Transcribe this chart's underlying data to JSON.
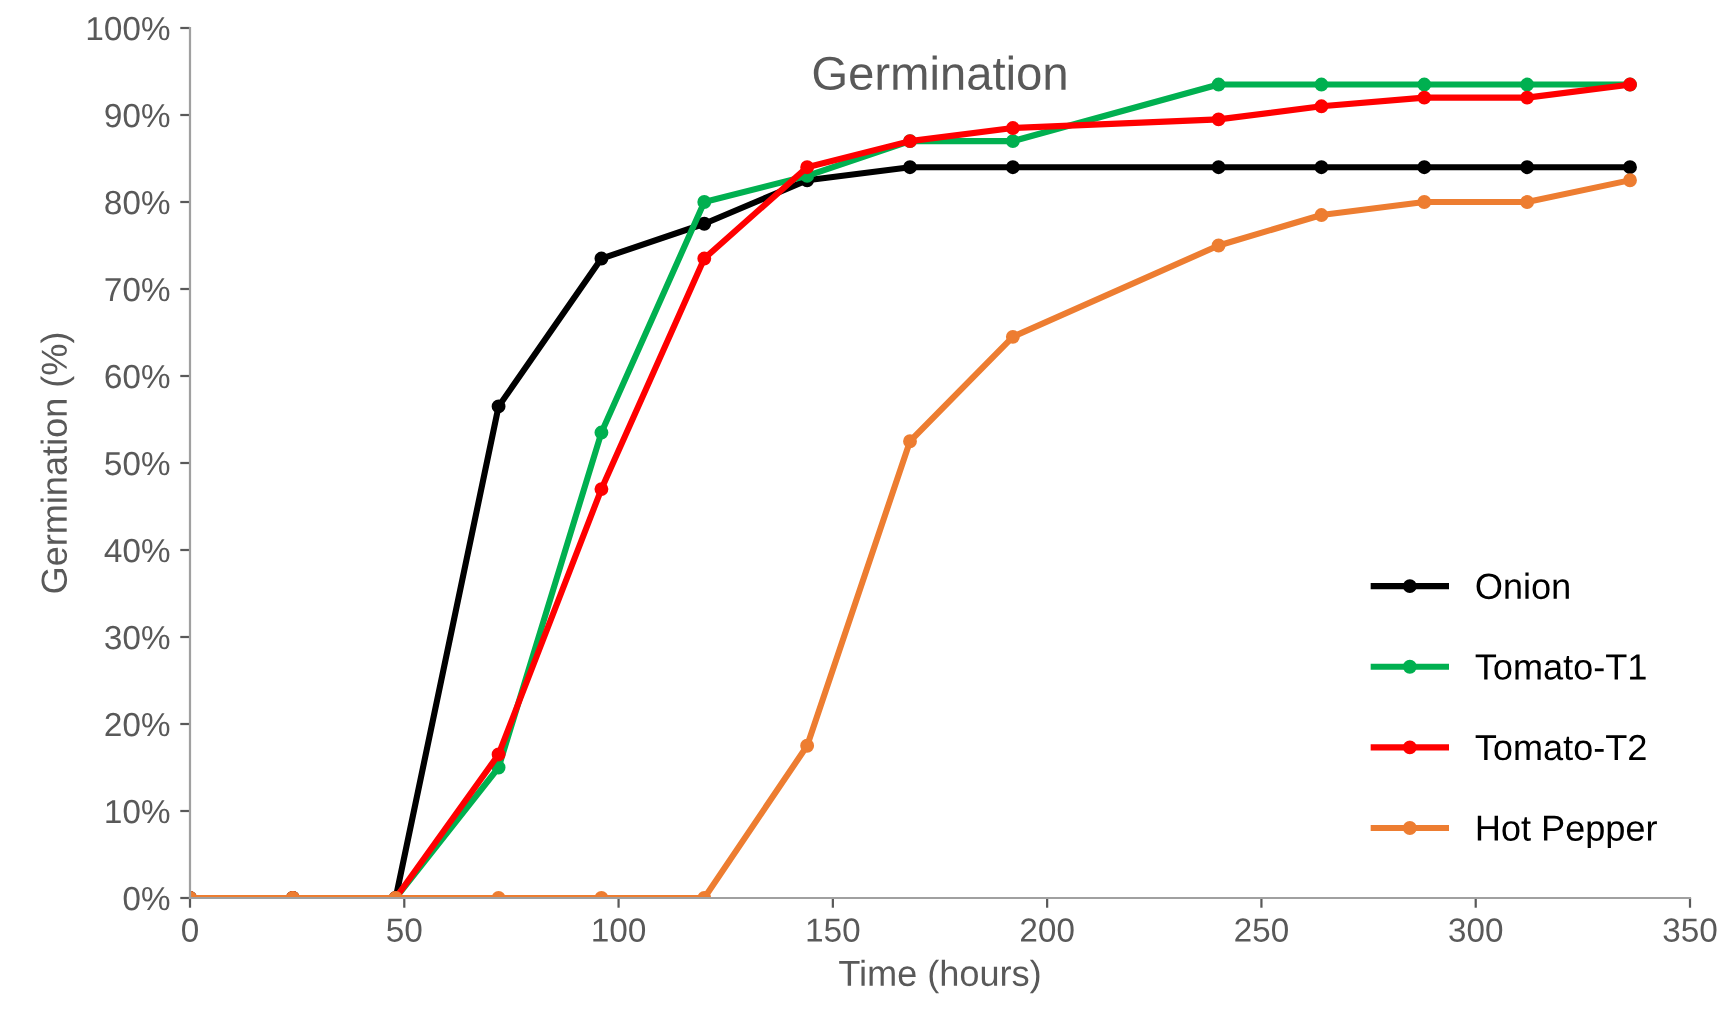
{
  "chart_data": {
    "type": "line",
    "title": "Germination",
    "xlabel": "Time (hours)",
    "ylabel": "Germination (%)",
    "x": [
      0,
      24,
      48,
      72,
      96,
      120,
      144,
      168,
      192,
      240,
      264,
      288,
      312,
      336
    ],
    "series": [
      {
        "name": "Onion",
        "color": "#000000",
        "values": [
          0,
          0,
          0,
          56.5,
          73.5,
          77.5,
          82.5,
          84,
          84,
          84,
          84,
          84,
          84,
          84
        ]
      },
      {
        "name": "Tomato-T1",
        "color": "#00b050",
        "values": [
          0,
          0,
          0,
          15,
          53.5,
          80,
          83,
          87,
          87,
          93.5,
          93.5,
          93.5,
          93.5,
          93.5
        ]
      },
      {
        "name": "Tomato-T2",
        "color": "#ff0000",
        "values": [
          0,
          0,
          0,
          16.5,
          47,
          73.5,
          84,
          87,
          88.5,
          89.5,
          91,
          92,
          92,
          93.5
        ]
      },
      {
        "name": "Hot Pepper",
        "color": "#ed7d31",
        "values": [
          0,
          0,
          0,
          0,
          0,
          0,
          17.5,
          52.5,
          64.5,
          75,
          78.5,
          80,
          80,
          82.5
        ]
      }
    ],
    "xlim": [
      0,
      350
    ],
    "xticks": [
      0,
      50,
      100,
      150,
      200,
      250,
      300,
      350
    ],
    "ylim": [
      0,
      100
    ],
    "yticks": [
      {
        "value": 0,
        "label": "0%"
      },
      {
        "value": 10,
        "label": "10%"
      },
      {
        "value": 20,
        "label": "20%"
      },
      {
        "value": 30,
        "label": "30%"
      },
      {
        "value": 40,
        "label": "40%"
      },
      {
        "value": 50,
        "label": "50%"
      },
      {
        "value": 60,
        "label": "60%"
      },
      {
        "value": 70,
        "label": "70%"
      },
      {
        "value": 80,
        "label": "80%"
      },
      {
        "value": 90,
        "label": "90%"
      },
      {
        "value": 100,
        "label": "100%"
      }
    ],
    "marker": "circle",
    "line_style": "solid",
    "grid": false,
    "legend": "bottom right"
  }
}
